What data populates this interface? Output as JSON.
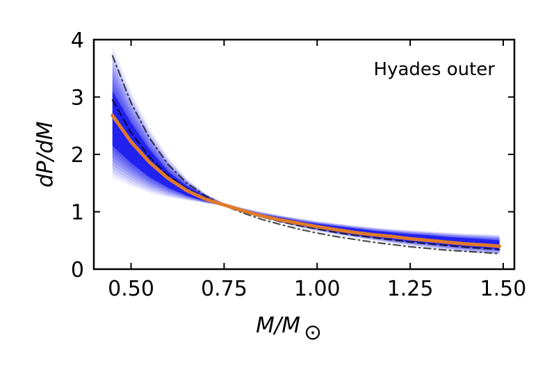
{
  "chart_data": {
    "type": "line",
    "title": "",
    "annotation": "Hyades outer",
    "xlabel": "M/M",
    "xlabel_sub": "⊙",
    "ylabel": "dP/dM",
    "xlim": [
      0.4,
      1.53
    ],
    "ylim": [
      0,
      4
    ],
    "xticks": [
      0.5,
      0.75,
      1.0,
      1.25,
      1.5
    ],
    "xtick_labels": [
      "0.50",
      "0.75",
      "1.00",
      "1.25",
      "1.50"
    ],
    "yticks": [
      0,
      1,
      2,
      3,
      4
    ],
    "ytick_labels": [
      "0",
      "1",
      "2",
      "3",
      "4"
    ],
    "grid": false,
    "x": [
      0.45,
      0.5,
      0.55,
      0.6,
      0.65,
      0.7,
      0.75,
      0.8,
      0.85,
      0.9,
      0.95,
      1.0,
      1.05,
      1.1,
      1.15,
      1.2,
      1.25,
      1.3,
      1.35,
      1.4,
      1.45,
      1.49
    ],
    "series": [
      {
        "values": [
          2.68,
          2.22,
          1.86,
          1.58,
          1.37,
          1.22,
          1.12,
          1.02,
          0.93,
          0.86,
          0.8,
          0.74,
          0.69,
          0.64,
          0.6,
          0.57,
          0.53,
          0.5,
          0.47,
          0.44,
          0.42,
          0.4
        ],
        "color": "#e07a2a"
      },
      {
        "values": [
          2.95,
          2.38,
          1.95,
          1.63,
          1.4,
          1.24,
          1.11,
          1.0,
          0.91,
          0.83,
          0.76,
          0.7,
          0.64,
          0.59,
          0.55,
          0.51,
          0.47,
          0.44,
          0.41,
          0.38,
          0.36,
          0.34
        ],
        "color": "#000000",
        "dash": "dashed"
      },
      {
        "values": [
          3.72,
          2.9,
          2.28,
          1.82,
          1.5,
          1.28,
          1.11,
          0.98,
          0.87,
          0.78,
          0.7,
          0.63,
          0.57,
          0.52,
          0.47,
          0.43,
          0.39,
          0.36,
          0.33,
          0.31,
          0.29,
          0.27
        ],
        "color": "#000000",
        "dash": "dashdot"
      }
    ],
    "band": {
      "color": "#0000ee",
      "lower_outer": [
        1.6,
        1.45,
        1.33,
        1.25,
        1.2,
        1.15,
        1.1,
        1.0,
        0.9,
        0.81,
        0.73,
        0.66,
        0.6,
        0.55,
        0.5,
        0.45,
        0.41,
        0.37,
        0.33,
        0.3,
        0.27,
        0.25
      ],
      "upper_outer": [
        3.9,
        3.1,
        2.45,
        1.95,
        1.58,
        1.32,
        1.15,
        1.07,
        1.0,
        0.94,
        0.89,
        0.84,
        0.8,
        0.76,
        0.73,
        0.7,
        0.68,
        0.66,
        0.64,
        0.62,
        0.61,
        0.6
      ],
      "lower_inner": [
        2.15,
        1.85,
        1.6,
        1.42,
        1.28,
        1.18,
        1.11,
        1.01,
        0.92,
        0.84,
        0.77,
        0.71,
        0.65,
        0.6,
        0.56,
        0.52,
        0.48,
        0.45,
        0.42,
        0.39,
        0.37,
        0.35
      ],
      "upper_inner": [
        3.1,
        2.55,
        2.08,
        1.7,
        1.45,
        1.27,
        1.13,
        1.04,
        0.96,
        0.9,
        0.84,
        0.79,
        0.75,
        0.71,
        0.67,
        0.64,
        0.61,
        0.59,
        0.56,
        0.54,
        0.52,
        0.5
      ]
    }
  }
}
